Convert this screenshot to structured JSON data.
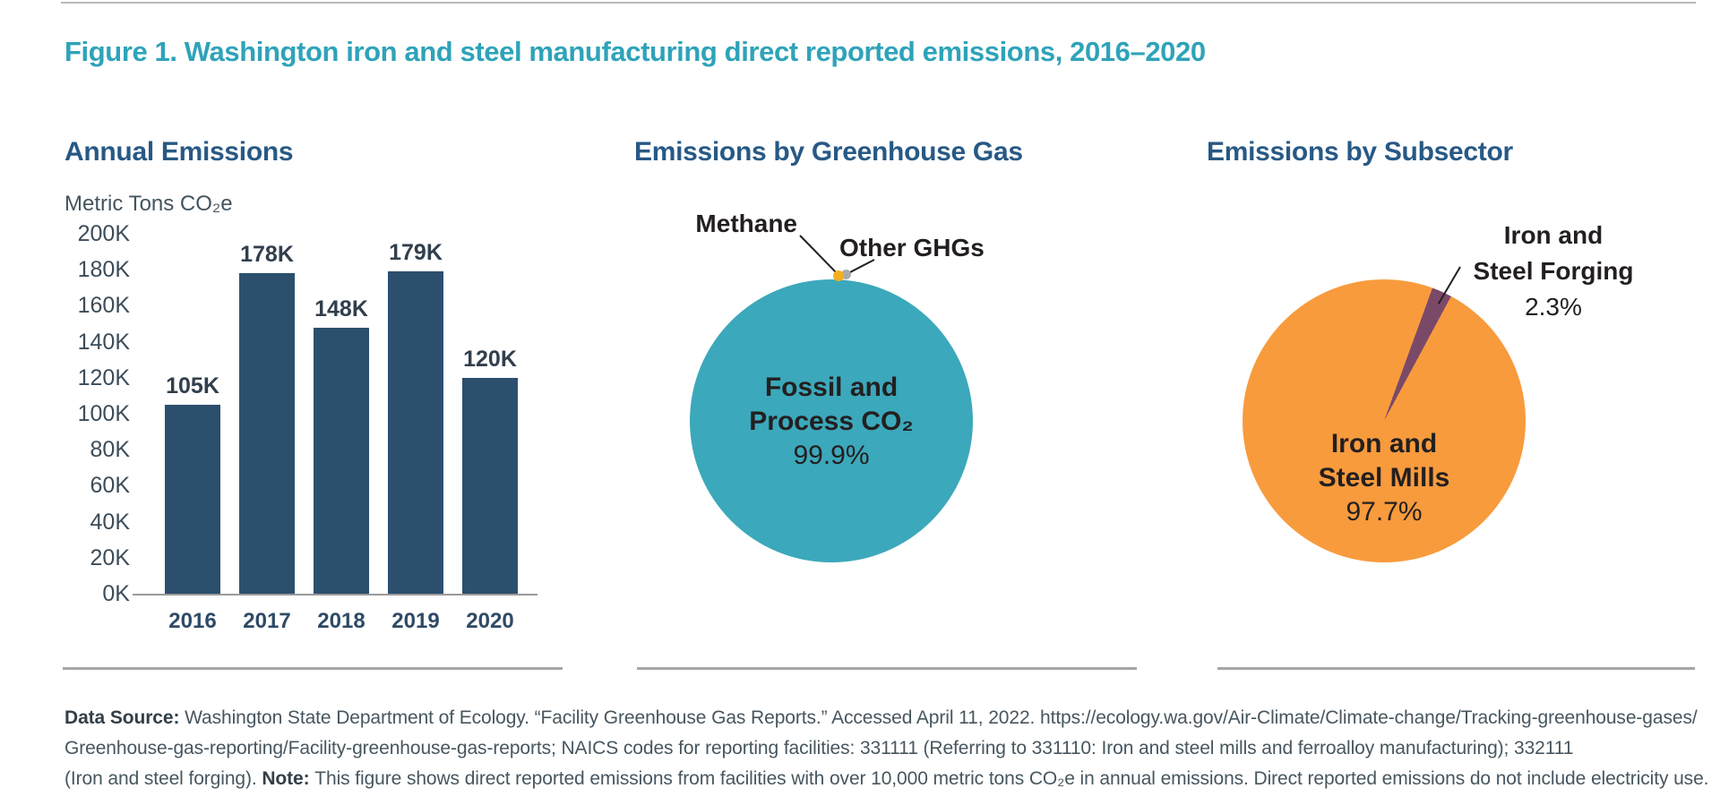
{
  "colors": {
    "accent_teal": "#2ea3b9",
    "heading_navy": "#275985",
    "bar_fill": "#2c4f6e",
    "axis_tick_text": "#3c4c59",
    "bar_label_text": "#313f4d",
    "pie_label_black": "#231f20",
    "footer_text": "#47565f",
    "divider_gray": "#a6a6a6",
    "co2_slice": "#3ca8bb",
    "methane_slice": "#f3af1c",
    "other_ghg_slice": "#a9abae",
    "mills_slice": "#f89b3d",
    "forging_slice": "#7b4968"
  },
  "figure": {
    "title": "Figure 1. Washington iron and steel manufacturing direct reported emissions, 2016–2020"
  },
  "chart_data": [
    {
      "type": "bar",
      "title": "Annual Emissions",
      "ylabel": "Metric Tons CO₂e",
      "xlabel": "",
      "categories": [
        "2016",
        "2017",
        "2018",
        "2019",
        "2020"
      ],
      "values": [
        105000,
        178000,
        148000,
        179000,
        120000
      ],
      "value_labels": [
        "105K",
        "178K",
        "148K",
        "179K",
        "120K"
      ],
      "ylim": [
        0,
        200000
      ],
      "ytick_interval": 20000,
      "ytick_labels": [
        "0K",
        "20K",
        "40K",
        "60K",
        "80K",
        "100K",
        "120K",
        "140K",
        "160K",
        "180K",
        "200K"
      ],
      "grid": false,
      "legend": "none",
      "bar_color": "#2c4f6e"
    },
    {
      "type": "pie",
      "title": "Emissions by Greenhouse Gas",
      "slices": [
        {
          "label": "Fossil and Process CO₂",
          "pct": 99.9,
          "pct_label": "99.9%",
          "color": "#3ca8bb",
          "center_lines": [
            "Fossil and",
            "Process CO₂"
          ]
        },
        {
          "label": "Methane",
          "pct": 0.05,
          "color": "#f3af1c"
        },
        {
          "label": "Other GHGs",
          "pct": 0.05,
          "color": "#a9abae"
        }
      ]
    },
    {
      "type": "pie",
      "title": "Emissions by Subsector",
      "slices": [
        {
          "label": "Iron and Steel Mills",
          "pct": 97.7,
          "pct_label": "97.7%",
          "color": "#f89b3d",
          "center_lines": [
            "Iron and",
            "Steel Mills"
          ]
        },
        {
          "label": "Iron and Steel Forging",
          "pct": 2.3,
          "pct_label": "2.3%",
          "color": "#7b4968",
          "callout_lines": [
            "Iron and",
            "Steel Forging"
          ]
        }
      ]
    }
  ],
  "footer": {
    "lines": [
      [
        {
          "t": "Data Source: ",
          "b": true
        },
        {
          "t": "Washington State Department of Ecology. “Facility Greenhouse Gas Reports.” Accessed April 11, 2022. https://ecology.wa.gov/Air-Climate/Climate-change/Tracking-greenhouse-gases/",
          "b": false
        }
      ],
      [
        {
          "t": "Greenhouse-gas-reporting/Facility-greenhouse-gas-reports; NAICS codes for reporting facilities: 331111 (Referring to 331110: Iron and steel mills and ferroalloy manufacturing); 332111",
          "b": false
        }
      ],
      [
        {
          "t": "(Iron and steel forging). ",
          "b": false
        },
        {
          "t": "Note: ",
          "b": true
        },
        {
          "t": "This figure shows direct reported emissions from facilities with over 10,000 metric tons CO₂e in annual emissions. Direct reported emissions do not include electricity use.",
          "b": false
        }
      ]
    ]
  }
}
